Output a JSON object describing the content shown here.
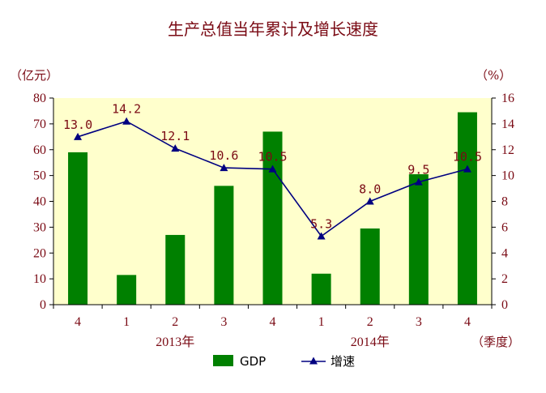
{
  "chart_data": {
    "type": "bar+line",
    "title": "生产总值当年累计及增长速度",
    "left_axis_unit": "（亿元）",
    "right_axis_unit": "（%）",
    "x_axis_unit": "（季度）",
    "categories": [
      "4",
      "1",
      "2",
      "3",
      "4",
      "1",
      "2",
      "3",
      "4"
    ],
    "year_labels": [
      {
        "label": "2013年",
        "category_index": 2
      },
      {
        "label": "2014年",
        "category_index": 6
      }
    ],
    "left_ylim": [
      0,
      80
    ],
    "left_ticks": [
      "0",
      "10",
      "20",
      "30",
      "40",
      "50",
      "60",
      "70",
      "80"
    ],
    "right_ylim": [
      0,
      16
    ],
    "right_ticks": [
      "0",
      "2",
      "4",
      "6",
      "8",
      "10",
      "12",
      "14",
      "16"
    ],
    "series": [
      {
        "name": "GDP",
        "kind": "bar",
        "axis": "left",
        "color": "#008000",
        "values": [
          59,
          11.5,
          27,
          46,
          67,
          12,
          29.5,
          50.5,
          74.5
        ]
      },
      {
        "name": "增速",
        "kind": "line",
        "axis": "right",
        "color": "#000080",
        "values": [
          13.0,
          14.2,
          12.1,
          10.6,
          10.5,
          5.3,
          8.0,
          9.5,
          10.5
        ],
        "labels": [
          "13.0",
          "14.2",
          "12.1",
          "10.6",
          "10.5",
          "5.3",
          "8.0",
          "9.5",
          "10.5"
        ]
      }
    ],
    "plot_background": "#ffffcc",
    "grid": false,
    "legend_position": "bottom"
  }
}
